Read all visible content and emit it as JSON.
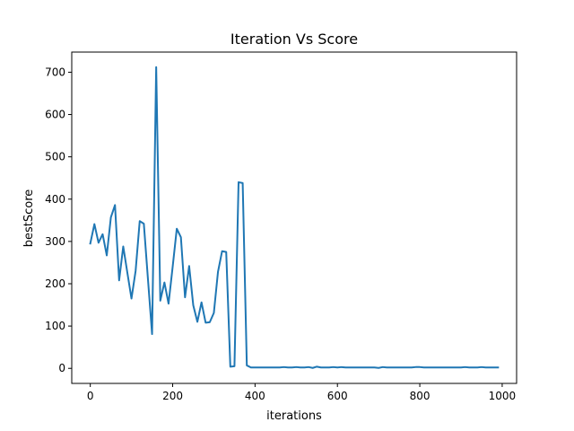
{
  "chart_data": {
    "type": "line",
    "title": "Iteration Vs Score",
    "xlabel": "iterations",
    "ylabel": "bestScore",
    "xlim": [
      -45,
      1035
    ],
    "ylim": [
      -35.6,
      747.6
    ],
    "xticks": [
      0,
      200,
      400,
      600,
      800,
      1000
    ],
    "yticks": [
      0,
      100,
      200,
      300,
      400,
      500,
      600,
      700
    ],
    "grid": false,
    "line_color": "#1f77b4",
    "series": [
      {
        "x": [
          0,
          10,
          20,
          30,
          40,
          50,
          60,
          70,
          80,
          90,
          100,
          110,
          120,
          130,
          140,
          150,
          160,
          170,
          180,
          190,
          200,
          210,
          220,
          230,
          240,
          250,
          260,
          270,
          280,
          290,
          300,
          310,
          320,
          330,
          340,
          350,
          360,
          370,
          380,
          390,
          400,
          410,
          420,
          430,
          440,
          450,
          460,
          470,
          480,
          490,
          500,
          510,
          520,
          530,
          540,
          550,
          560,
          570,
          580,
          590,
          600,
          610,
          620,
          630,
          640,
          650,
          660,
          670,
          680,
          690,
          700,
          710,
          720,
          730,
          740,
          750,
          760,
          770,
          780,
          790,
          800,
          810,
          820,
          830,
          840,
          850,
          860,
          870,
          880,
          890,
          900,
          910,
          920,
          930,
          940,
          950,
          960,
          970,
          980,
          990
        ],
        "y": [
          295,
          341,
          297,
          317,
          267,
          357,
          386,
          208,
          288,
          226,
          165,
          230,
          348,
          342,
          211,
          81,
          712,
          160,
          203,
          153,
          240,
          330,
          310,
          168,
          242,
          149,
          110,
          156,
          108,
          109,
          131,
          228,
          277,
          275,
          4,
          5,
          440,
          438,
          7,
          2,
          2,
          2,
          2,
          2,
          2,
          2,
          2,
          3,
          2,
          2,
          3,
          2,
          2,
          3,
          1,
          4,
          2,
          2,
          2,
          3,
          2,
          3,
          2,
          2,
          2,
          2,
          2,
          2,
          2,
          2,
          1,
          3,
          2,
          2,
          2,
          2,
          2,
          2,
          2,
          3,
          3,
          2,
          2,
          2,
          2,
          2,
          2,
          2,
          2,
          2,
          2,
          3,
          2,
          2,
          2,
          3,
          2,
          2,
          2,
          2
        ]
      }
    ]
  }
}
